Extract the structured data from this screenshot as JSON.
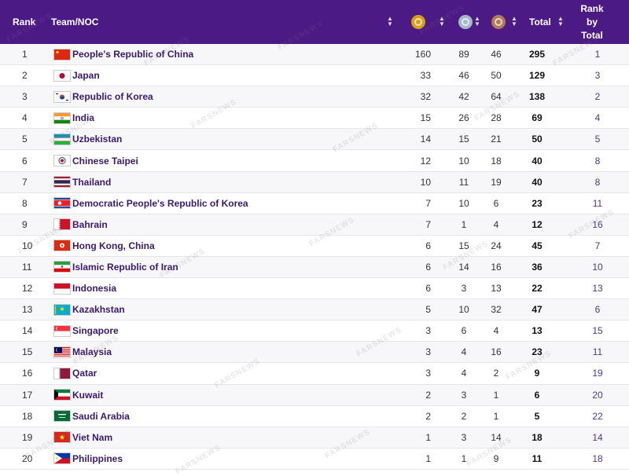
{
  "header": {
    "rank": "Rank",
    "team": "Team/NOC",
    "total": "Total",
    "rank_by_total_line1": "Rank",
    "rank_by_total_line2": "by",
    "rank_by_total_line3": "Total",
    "medal_icons": [
      "gold-medal-icon",
      "silver-medal-icon",
      "bronze-medal-icon"
    ],
    "sort_icon": "sort-arrows-icon"
  },
  "watermark": "FARSNEWS",
  "colors": {
    "header_bg": "#4c1a84",
    "team_text": "#3b1a6e",
    "rank_by_total_text": "#4c3a8a"
  },
  "rows": [
    {
      "rank": "1",
      "team": "People's Republic of China",
      "flag": "CHN",
      "gold": "160",
      "silver": "89",
      "bronze": "46",
      "total": "295",
      "rbt": "1"
    },
    {
      "rank": "2",
      "team": "Japan",
      "flag": "JPN",
      "gold": "33",
      "silver": "46",
      "bronze": "50",
      "total": "129",
      "rbt": "3"
    },
    {
      "rank": "3",
      "team": "Republic of Korea",
      "flag": "KOR",
      "gold": "32",
      "silver": "42",
      "bronze": "64",
      "total": "138",
      "rbt": "2"
    },
    {
      "rank": "4",
      "team": "India",
      "flag": "IND",
      "gold": "15",
      "silver": "26",
      "bronze": "28",
      "total": "69",
      "rbt": "4"
    },
    {
      "rank": "5",
      "team": "Uzbekistan",
      "flag": "UZB",
      "gold": "14",
      "silver": "15",
      "bronze": "21",
      "total": "50",
      "rbt": "5"
    },
    {
      "rank": "6",
      "team": "Chinese Taipei",
      "flag": "TPE",
      "gold": "12",
      "silver": "10",
      "bronze": "18",
      "total": "40",
      "rbt": "8"
    },
    {
      "rank": "7",
      "team": "Thailand",
      "flag": "THA",
      "gold": "10",
      "silver": "11",
      "bronze": "19",
      "total": "40",
      "rbt": "8"
    },
    {
      "rank": "8",
      "team": "Democratic People's Republic of Korea",
      "flag": "PRK",
      "gold": "7",
      "silver": "10",
      "bronze": "6",
      "total": "23",
      "rbt": "11"
    },
    {
      "rank": "9",
      "team": "Bahrain",
      "flag": "BRN",
      "gold": "7",
      "silver": "1",
      "bronze": "4",
      "total": "12",
      "rbt": "16"
    },
    {
      "rank": "10",
      "team": "Hong Kong, China",
      "flag": "HKG",
      "gold": "6",
      "silver": "15",
      "bronze": "24",
      "total": "45",
      "rbt": "7"
    },
    {
      "rank": "11",
      "team": "Islamic Republic of Iran",
      "flag": "IRI",
      "gold": "6",
      "silver": "14",
      "bronze": "16",
      "total": "36",
      "rbt": "10"
    },
    {
      "rank": "12",
      "team": "Indonesia",
      "flag": "INA",
      "gold": "6",
      "silver": "3",
      "bronze": "13",
      "total": "22",
      "rbt": "13"
    },
    {
      "rank": "13",
      "team": "Kazakhstan",
      "flag": "KAZ",
      "gold": "5",
      "silver": "10",
      "bronze": "32",
      "total": "47",
      "rbt": "6"
    },
    {
      "rank": "14",
      "team": "Singapore",
      "flag": "SGP",
      "gold": "3",
      "silver": "6",
      "bronze": "4",
      "total": "13",
      "rbt": "15"
    },
    {
      "rank": "15",
      "team": "Malaysia",
      "flag": "MAS",
      "gold": "3",
      "silver": "4",
      "bronze": "16",
      "total": "23",
      "rbt": "11"
    },
    {
      "rank": "16",
      "team": "Qatar",
      "flag": "QAT",
      "gold": "3",
      "silver": "4",
      "bronze": "2",
      "total": "9",
      "rbt": "19"
    },
    {
      "rank": "17",
      "team": "Kuwait",
      "flag": "KUW",
      "gold": "2",
      "silver": "3",
      "bronze": "1",
      "total": "6",
      "rbt": "20"
    },
    {
      "rank": "18",
      "team": "Saudi Arabia",
      "flag": "KSA",
      "gold": "2",
      "silver": "2",
      "bronze": "1",
      "total": "5",
      "rbt": "22"
    },
    {
      "rank": "19",
      "team": "Viet Nam",
      "flag": "VIE",
      "gold": "1",
      "silver": "3",
      "bronze": "14",
      "total": "18",
      "rbt": "14"
    },
    {
      "rank": "20",
      "team": "Philippines",
      "flag": "PHI",
      "gold": "1",
      "silver": "1",
      "bronze": "9",
      "total": "11",
      "rbt": "18"
    }
  ]
}
